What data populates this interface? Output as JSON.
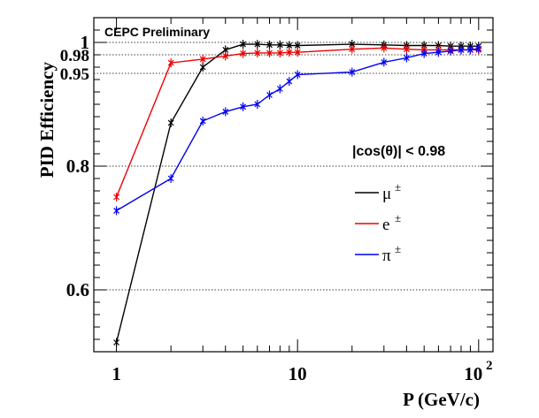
{
  "chart_data": {
    "type": "line",
    "xlabel": "P (GeV/c)",
    "ylabel": "PID Efficiency",
    "xscale": "log",
    "xlim": [
      0.75,
      120
    ],
    "ylim": [
      0.5,
      1.04
    ],
    "x_ticks": [
      {
        "value": 1,
        "label": "1"
      },
      {
        "value": 10,
        "label": "10"
      },
      {
        "value": 100,
        "label": "10",
        "sup": "2"
      }
    ],
    "y_ticks": [
      {
        "value": 1.0,
        "label": "1"
      },
      {
        "value": 0.98,
        "label": "0.98"
      },
      {
        "value": 0.95,
        "label": "0.95"
      },
      {
        "value": 0.8,
        "label": "0.8"
      },
      {
        "value": 0.6,
        "label": "0.6"
      }
    ],
    "grid_y": [
      1.0,
      0.98,
      0.95,
      0.8,
      0.6
    ],
    "grid": "dotted horizontal at labeled y ticks",
    "annotations": {
      "preliminary": "CEPC Preliminary",
      "cut": "|cos(θ)| < 0.98"
    },
    "legend_placement": "right",
    "series": [
      {
        "name": "μ",
        "name_sup": "±",
        "color": "#000000",
        "x": [
          1,
          2,
          3,
          4,
          5,
          6,
          7,
          8,
          9,
          10,
          20,
          30,
          40,
          50,
          60,
          70,
          80,
          90,
          100
        ],
        "y": [
          0.515,
          0.87,
          0.96,
          0.988,
          0.997,
          0.997,
          0.996,
          0.996,
          0.995,
          0.995,
          0.997,
          0.996,
          0.995,
          0.995,
          0.995,
          0.994,
          0.994,
          0.994,
          0.994
        ]
      },
      {
        "name": "e",
        "name_sup": "±",
        "color": "#ee0000",
        "x": [
          1,
          2,
          3,
          4,
          5,
          6,
          7,
          8,
          9,
          10,
          20,
          30,
          40,
          50,
          60,
          70,
          80,
          90,
          100
        ],
        "y": [
          0.75,
          0.967,
          0.973,
          0.978,
          0.982,
          0.983,
          0.983,
          0.983,
          0.984,
          0.984,
          0.989,
          0.991,
          0.989,
          0.988,
          0.988,
          0.988,
          0.988,
          0.988,
          0.988
        ]
      },
      {
        "name": "π",
        "name_sup": "±",
        "color": "#0000ee",
        "x": [
          1,
          2,
          3,
          4,
          5,
          6,
          7,
          8,
          9,
          10,
          20,
          30,
          40,
          50,
          60,
          70,
          80,
          90,
          100
        ],
        "y": [
          0.728,
          0.78,
          0.873,
          0.888,
          0.896,
          0.9,
          0.915,
          0.925,
          0.937,
          0.948,
          0.952,
          0.968,
          0.975,
          0.982,
          0.984,
          0.986,
          0.988,
          0.988,
          0.99
        ]
      }
    ]
  }
}
